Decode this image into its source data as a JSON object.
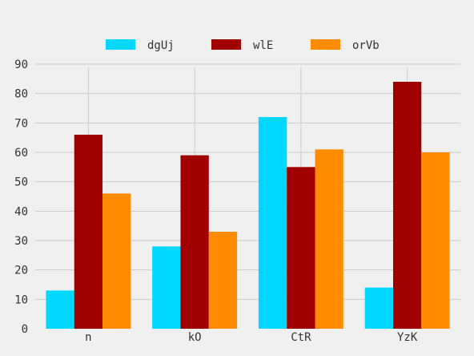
{
  "chart_data": {
    "type": "bar",
    "categories": [
      "n",
      "kO",
      "CtR",
      "YzK"
    ],
    "series": [
      {
        "name": "dgUj",
        "color": "#00d8ff",
        "values": [
          13,
          28,
          72,
          14
        ]
      },
      {
        "name": "wlE",
        "color": "#a00000",
        "values": [
          66,
          59,
          55,
          84
        ]
      },
      {
        "name": "orVb",
        "color": "#ff8c00",
        "values": [
          46,
          33,
          61,
          60
        ]
      }
    ],
    "ylim": [
      0,
      90
    ],
    "yticks": [
      0,
      10,
      20,
      30,
      40,
      50,
      60,
      70,
      80,
      90
    ],
    "grid": true,
    "legend": "top-center",
    "background": "#f0f0f0",
    "grid_color": "#cccccc"
  }
}
